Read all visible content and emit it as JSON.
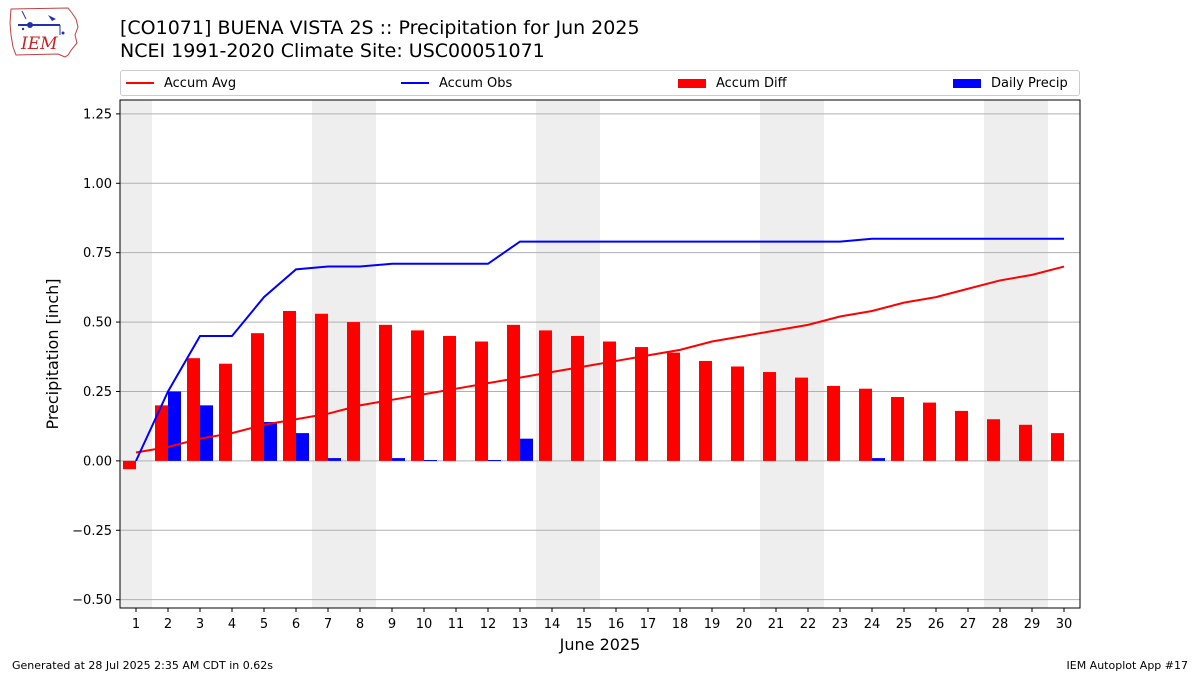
{
  "header": {
    "title": "[CO1071] BUENA VISTA 2S :: Precipitation for Jun 2025",
    "subtitle": "NCEI 1991-2020 Climate Site: USC00051071"
  },
  "logo": {
    "text": "IEM",
    "icon": "iem-iowa-logo-icon"
  },
  "footer": {
    "generated": "Generated at 28 Jul 2025 2:35 AM CDT in 0.62s",
    "app": "IEM Autoplot App #17"
  },
  "legend": [
    {
      "label": "Accum Avg",
      "kind": "line",
      "color": "#ff0000"
    },
    {
      "label": "Accum Obs",
      "kind": "line",
      "color": "#0000ff"
    },
    {
      "label": "Accum Diff",
      "kind": "bar",
      "color": "#ff0000"
    },
    {
      "label": "Daily Precip",
      "kind": "bar",
      "color": "#0000ff"
    }
  ],
  "chart_data": {
    "type": "bar",
    "xlabel": "June 2025",
    "ylabel": "Precipitation [inch]",
    "ylim": [
      -0.53,
      1.3
    ],
    "yticks": [
      -0.5,
      -0.25,
      0.0,
      0.25,
      0.5,
      0.75,
      1.0,
      1.25
    ],
    "ytick_labels": [
      "−0.50",
      "−0.25",
      "0.00",
      "0.25",
      "0.50",
      "0.75",
      "1.00",
      "1.25"
    ],
    "grid": "horizontal",
    "legend_position": "top",
    "weekend_shading_color": "#eeeeee",
    "weekend_days": [
      1,
      7,
      8,
      14,
      15,
      21,
      22,
      28,
      29
    ],
    "x": [
      1,
      2,
      3,
      4,
      5,
      6,
      7,
      8,
      9,
      10,
      11,
      12,
      13,
      14,
      15,
      16,
      17,
      18,
      19,
      20,
      21,
      22,
      23,
      24,
      25,
      26,
      27,
      28,
      29,
      30
    ],
    "series": [
      {
        "name": "Accum Avg",
        "kind": "line",
        "color": "#ff0000",
        "values": [
          0.03,
          0.05,
          0.08,
          0.1,
          0.13,
          0.15,
          0.17,
          0.2,
          0.22,
          0.24,
          0.26,
          0.28,
          0.3,
          0.32,
          0.34,
          0.36,
          0.38,
          0.4,
          0.43,
          0.45,
          0.47,
          0.49,
          0.52,
          0.54,
          0.57,
          0.59,
          0.62,
          0.65,
          0.67,
          0.7
        ]
      },
      {
        "name": "Accum Obs",
        "kind": "line",
        "color": "#0000ff",
        "values": [
          0.0,
          0.25,
          0.45,
          0.45,
          0.59,
          0.69,
          0.7,
          0.7,
          0.71,
          0.71,
          0.71,
          0.71,
          0.79,
          0.79,
          0.79,
          0.79,
          0.79,
          0.79,
          0.79,
          0.79,
          0.79,
          0.79,
          0.79,
          0.8,
          0.8,
          0.8,
          0.8,
          0.8,
          0.8,
          0.8
        ]
      },
      {
        "name": "Accum Diff",
        "kind": "bar",
        "color": "#ff0000",
        "values": [
          -0.03,
          0.2,
          0.37,
          0.35,
          0.46,
          0.54,
          0.53,
          0.5,
          0.49,
          0.47,
          0.45,
          0.43,
          0.49,
          0.47,
          0.45,
          0.43,
          0.41,
          0.39,
          0.36,
          0.34,
          0.32,
          0.3,
          0.27,
          0.26,
          0.23,
          0.21,
          0.18,
          0.15,
          0.13,
          0.1
        ]
      },
      {
        "name": "Daily Precip",
        "kind": "bar",
        "color": "#0000ff",
        "values": [
          0.0,
          0.25,
          0.2,
          0.0,
          0.14,
          0.1,
          0.01,
          0.0,
          0.01,
          0.003,
          0.0,
          0.003,
          0.08,
          0.0,
          0.0,
          0.0,
          0.0,
          0.0,
          0.0,
          0.0,
          0.0,
          0.0,
          0.0,
          0.01,
          0.0,
          0.0,
          0.0,
          0.0,
          0.0,
          0.0
        ]
      }
    ]
  }
}
